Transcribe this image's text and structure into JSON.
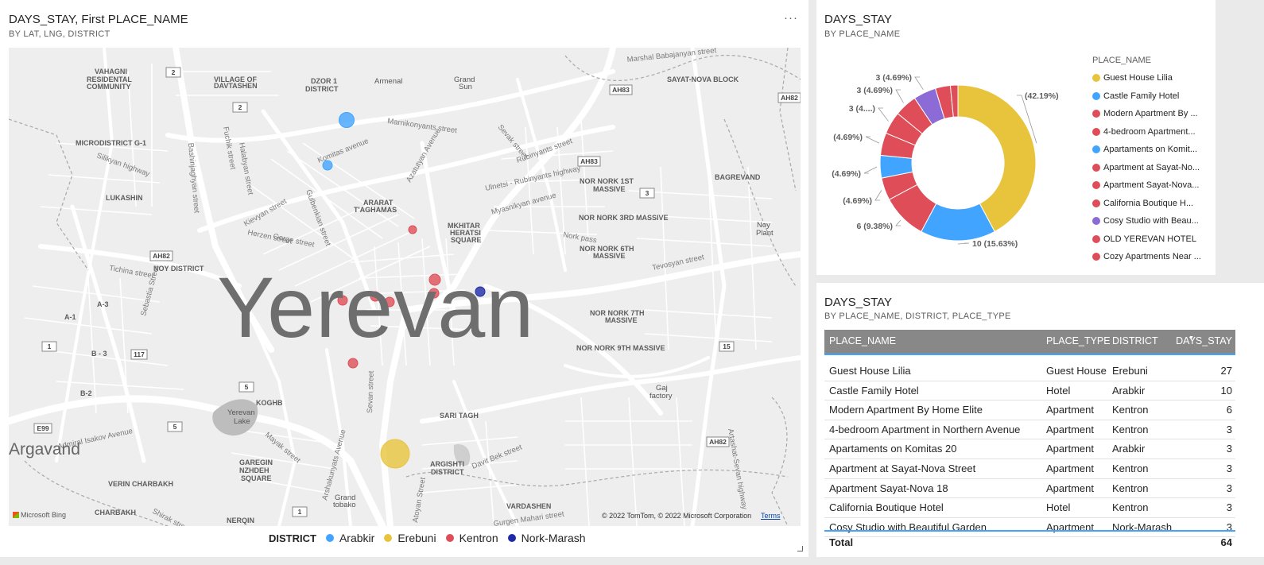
{
  "map_visual": {
    "title": "DAYS_STAY, First PLACE_NAME",
    "subtitle": "BY LAT, LNG, DISTRICT",
    "more_label": "···",
    "city_label": "Yerevan",
    "secondary_label": "Argavand",
    "places": [
      "Marshal Babajanyan street",
      "SAYAT-NOVA BLOCK",
      "VAHAGNI",
      "RESIDENTAL",
      "COMMUNITY",
      "VILLAGE OF",
      "DAVTASHEN",
      "DZOR 1",
      "DISTRICT",
      "Armenal",
      "Grand",
      "Sun",
      "MICRODISTRICT G-1",
      "LUKASHIN",
      "NOY DISTRICT",
      "A-3",
      "A-1",
      "B - 3",
      "B-2",
      "ARARAT",
      "T'AGHAMAS",
      "MKHITAR",
      "HERATSI",
      "SQUARE",
      "NOR NORK 1ST",
      "MASSIVE",
      "NOR NORK 3RD MASSIVE",
      "NOR NORK 6TH",
      "NOR NORK 7TH",
      "NOR NORK 9TH MASSIVE",
      "BAGREVAND",
      "Noy",
      "Plant",
      "KOGHB",
      "Yerevan",
      "Lake",
      "SARI TAGH",
      "ARGISHTI",
      "GAREGIN",
      "NZHDEH",
      "VERIN CHARBAKH",
      "CHARBAKH",
      "Grand",
      "tobako",
      "VARDASHEN",
      "Gaj",
      "factory",
      "NERQIN"
    ],
    "streets": [
      "Marnikonyants street",
      "Komitas avenue",
      "Gulbenkian street",
      "Azatutyan Avenue",
      "Rubinyants street",
      "Sevak street",
      "Ulnetsi - Rubinyants highway",
      "Myasnikyan avenue",
      "Kievyan street",
      "Halabyan street",
      "Fuchik street",
      "Bashinjaghyan street",
      "Silikyan highway",
      "Tichina street",
      "Sebastia Street",
      "Admiral Isakov Avenue",
      "Arshakunyats Avenue",
      "Davit Bek street",
      "Gurgen Mahari street",
      "Atoyan Street",
      "Shirak street",
      "Sevan street",
      "Nork pass",
      "Tevosyan street",
      "Artashat-Sevan highway",
      "Herzen street",
      "Gorge street",
      "Mayak street"
    ],
    "road_shields": [
      "2",
      "2",
      "AH83",
      "AH82",
      "AH83",
      "3",
      "AH82",
      "117",
      "1",
      "5",
      "5",
      "E99",
      "15",
      "AH82",
      "1"
    ],
    "bing_label": "Microsoft Bing",
    "copyright": "© 2022 TomTom, © 2022 Microsoft Corporation",
    "terms_label": "Terms",
    "legend": {
      "title": "DISTRICT",
      "items": [
        {
          "label": "Arabkir",
          "color": "#41a4ff"
        },
        {
          "label": "Erebuni",
          "color": "#e8c43d"
        },
        {
          "label": "Kentron",
          "color": "#de4d58"
        },
        {
          "label": "Nork-Marash",
          "color": "#1f2aa8"
        }
      ]
    },
    "bubbles": [
      {
        "district": "Arabkir",
        "value": 3
      },
      {
        "district": "Arabkir",
        "value": 10
      },
      {
        "district": "Kentron",
        "value": 3
      },
      {
        "district": "Kentron",
        "value": 6
      },
      {
        "district": "Kentron",
        "value": 3
      },
      {
        "district": "Kentron",
        "value": 3
      },
      {
        "district": "Kentron",
        "value": 3
      },
      {
        "district": "Kentron",
        "value": 3
      },
      {
        "district": "Kentron",
        "value": 3
      },
      {
        "district": "Nork-Marash",
        "value": 3
      },
      {
        "district": "Erebuni",
        "value": 27
      }
    ]
  },
  "donut_visual": {
    "title": "DAYS_STAY",
    "subtitle": "BY PLACE_NAME",
    "legend_title": "PLACE_NAME",
    "legend_items": [
      {
        "label": "Guest House Lilia",
        "color": "#e8c43d"
      },
      {
        "label": "Castle Family Hotel",
        "color": "#41a4ff"
      },
      {
        "label": "Modern Apartment By ...",
        "color": "#de4d58"
      },
      {
        "label": "4-bedroom Apartment...",
        "color": "#de4d58"
      },
      {
        "label": "Apartaments on Komit...",
        "color": "#41a4ff"
      },
      {
        "label": "Apartment at Sayat-No...",
        "color": "#de4d58"
      },
      {
        "label": "Apartment Sayat-Nova...",
        "color": "#de4d58"
      },
      {
        "label": "California Boutique H...",
        "color": "#de4d58"
      },
      {
        "label": "Cosy Studio with Beau...",
        "color": "#8c6bd6"
      },
      {
        "label": "OLD YEREVAN HOTEL",
        "color": "#de4d58"
      },
      {
        "label": "Cozy Apartments Near ...",
        "color": "#de4d58"
      }
    ],
    "slice_labels": [
      "(42.19%)",
      "10 (15.63%)",
      "6 (9.38%)",
      "(4.69%)",
      "(4.69%)",
      "(4.69%)",
      "3 (4....)",
      "3 (4.69%)",
      "3 (4.69%)"
    ]
  },
  "table_visual": {
    "title": "DAYS_STAY",
    "subtitle": "BY PLACE_NAME, DISTRICT, PLACE_TYPE",
    "columns": [
      "PLACE_NAME",
      "PLACE_TYPE",
      "DISTRICT",
      "DAYS_STAY"
    ],
    "rows": [
      [
        "Guest House Lilia",
        "Guest House",
        "Erebuni",
        "27"
      ],
      [
        "Castle Family Hotel",
        "Hotel",
        "Arabkir",
        "10"
      ],
      [
        "Modern Apartment By Home Elite",
        "Apartment",
        "Kentron",
        "6"
      ],
      [
        "4-bedroom Apartment in Northern Avenue",
        "Apartment",
        "Kentron",
        "3"
      ],
      [
        "Apartaments on Komitas 20",
        "Apartment",
        "Arabkir",
        "3"
      ],
      [
        "Apartment at Sayat-Nova Street",
        "Apartment",
        "Kentron",
        "3"
      ],
      [
        "Apartment Sayat-Nova 18",
        "Apartment",
        "Kentron",
        "3"
      ],
      [
        "California Boutique Hotel",
        "Hotel",
        "Kentron",
        "3"
      ],
      [
        "Cosy Studio with Beautiful Garden",
        "Apartment",
        "Nork-Marash",
        "3"
      ]
    ],
    "total_label": "Total",
    "total_value": "64"
  },
  "chart_data": {
    "type": "pie",
    "title": "DAYS_STAY",
    "subtitle": "BY PLACE_NAME",
    "categories": [
      "Guest House Lilia",
      "Castle Family Hotel",
      "Modern Apartment By Home Elite",
      "4-bedroom Apartment in Northern Avenue",
      "Apartaments on Komitas 20",
      "Apartment at Sayat-Nova Street",
      "Apartment Sayat-Nova 18",
      "California Boutique Hotel",
      "Cosy Studio with Beautiful Garden",
      "OLD YEREVAN HOTEL",
      "Cozy Apartments Near ..."
    ],
    "values": [
      27,
      10,
      6,
      3,
      3,
      3,
      3,
      3,
      3,
      2,
      1
    ],
    "colors": [
      "#e8c43d",
      "#41a4ff",
      "#de4d58",
      "#de4d58",
      "#41a4ff",
      "#de4d58",
      "#de4d58",
      "#de4d58",
      "#8c6bd6",
      "#de4d58",
      "#de4d58"
    ],
    "donut": true,
    "legend_position": "right"
  }
}
